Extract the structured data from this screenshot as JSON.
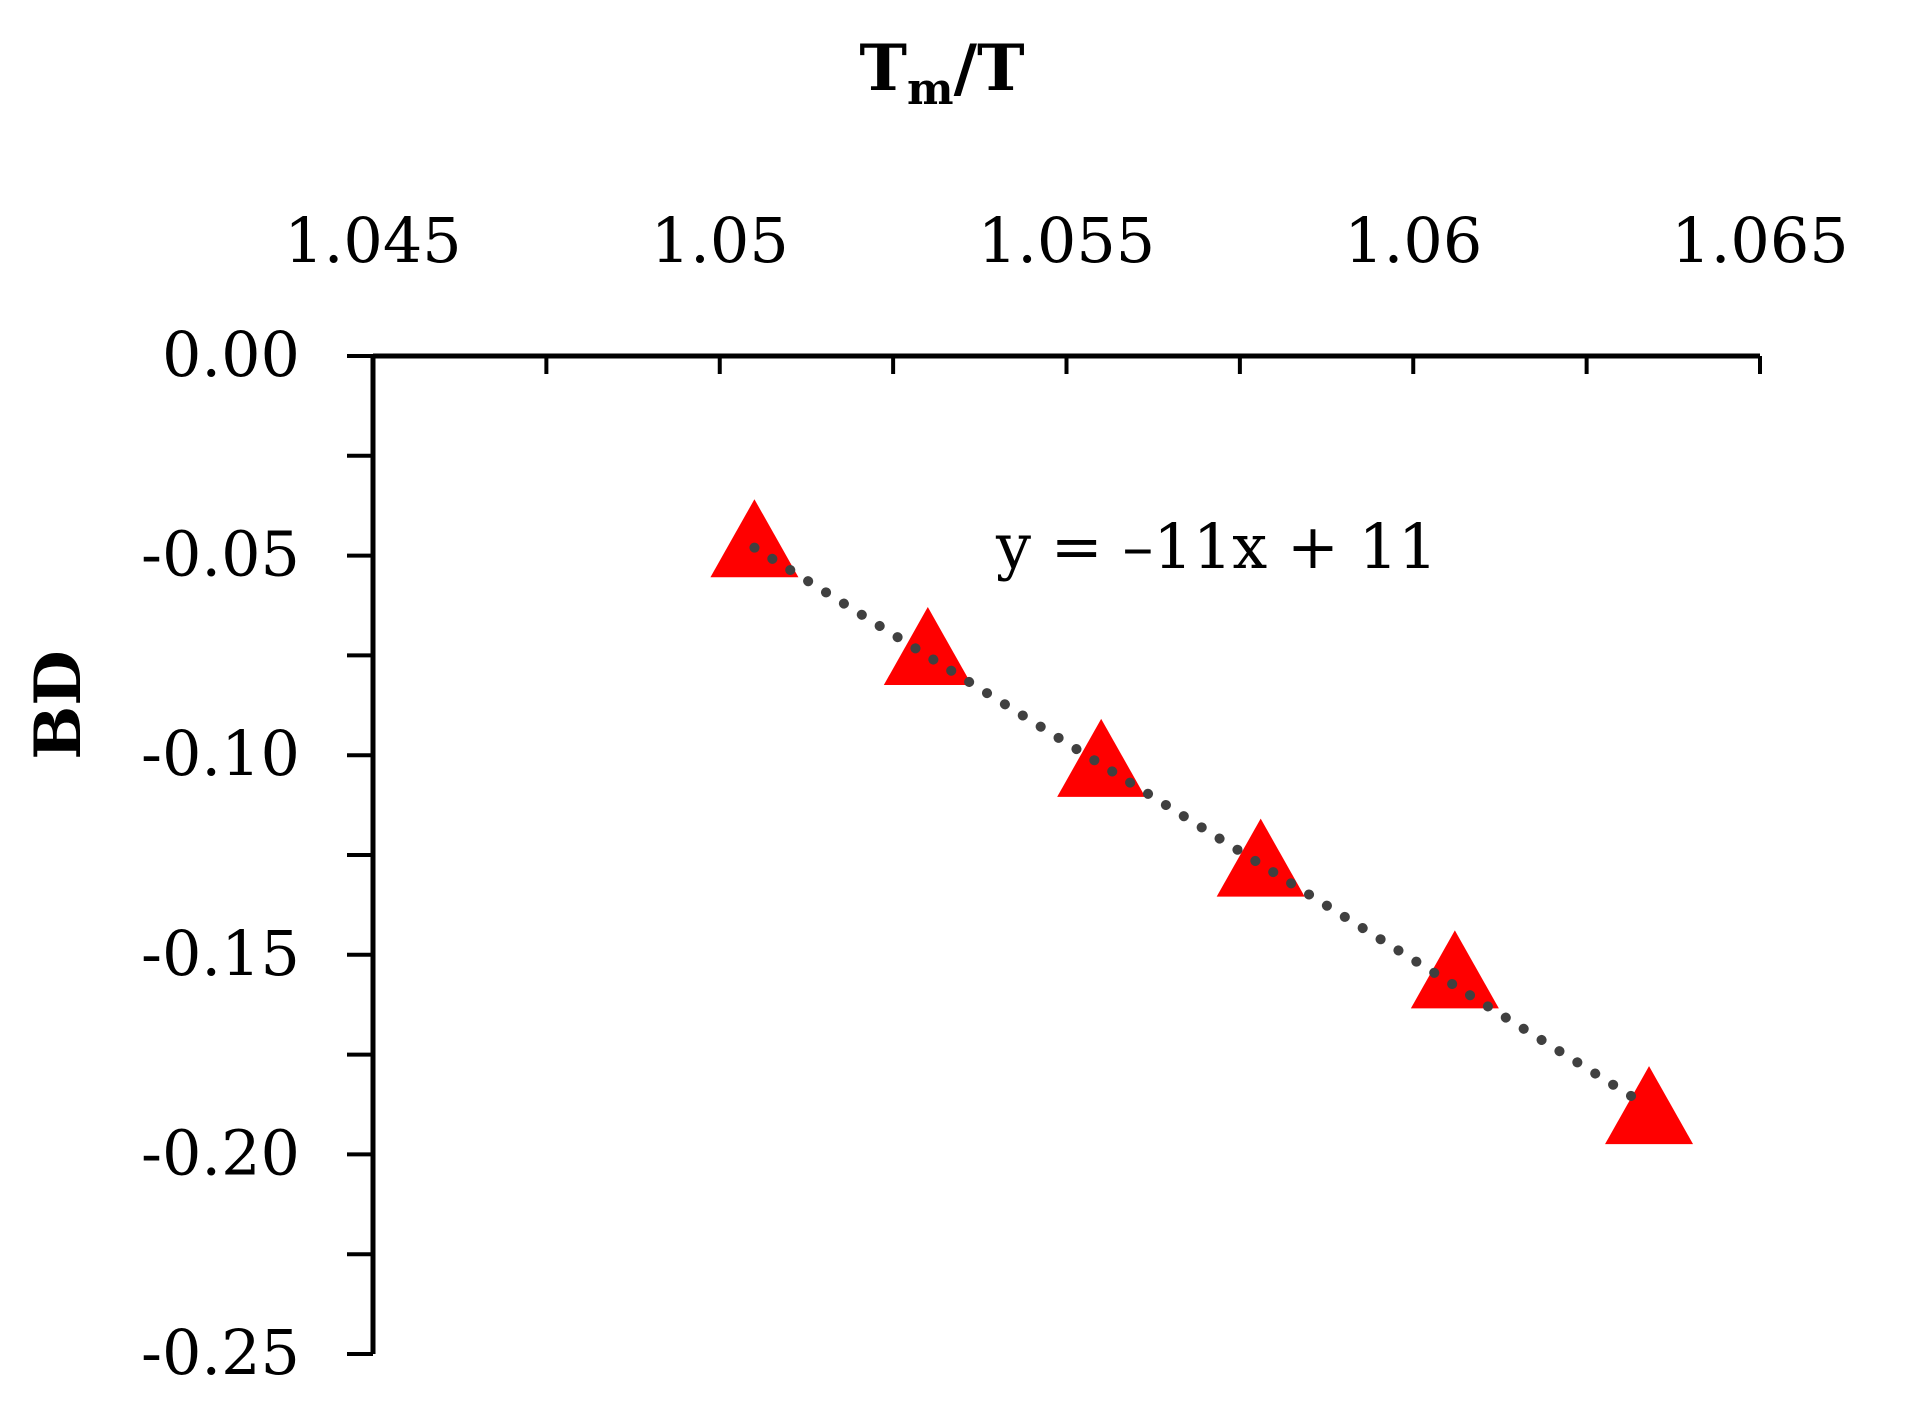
{
  "chart_data": {
    "type": "scatter",
    "xlabel_main": "T",
    "xlabel_sub": "m",
    "xlabel_tail": "/T",
    "ylabel": "BD",
    "xlim": [
      1.045,
      1.065
    ],
    "ylim": [
      -0.25,
      0.0
    ],
    "x_ticks": [
      "1.045",
      "1.05",
      "1.055",
      "1.06",
      "1.065"
    ],
    "y_ticks": [
      "0.00",
      "-0.05",
      "-0.10",
      "-0.15",
      "-0.20",
      "-0.25"
    ],
    "series": [
      {
        "marker": "triangle",
        "color": "#ff0000",
        "points": [
          {
            "x": 1.0505,
            "y": -0.048
          },
          {
            "x": 1.053,
            "y": -0.075
          },
          {
            "x": 1.0555,
            "y": -0.103
          },
          {
            "x": 1.0578,
            "y": -0.128
          },
          {
            "x": 1.0606,
            "y": -0.156
          },
          {
            "x": 1.0634,
            "y": -0.19
          }
        ]
      }
    ],
    "trendline": {
      "style": "dotted",
      "color": "#404040",
      "from": {
        "x": 1.0505,
        "y": -0.048
      },
      "to": {
        "x": 1.0632,
        "y": -0.186
      },
      "equation": "y = –11x + 11"
    }
  }
}
